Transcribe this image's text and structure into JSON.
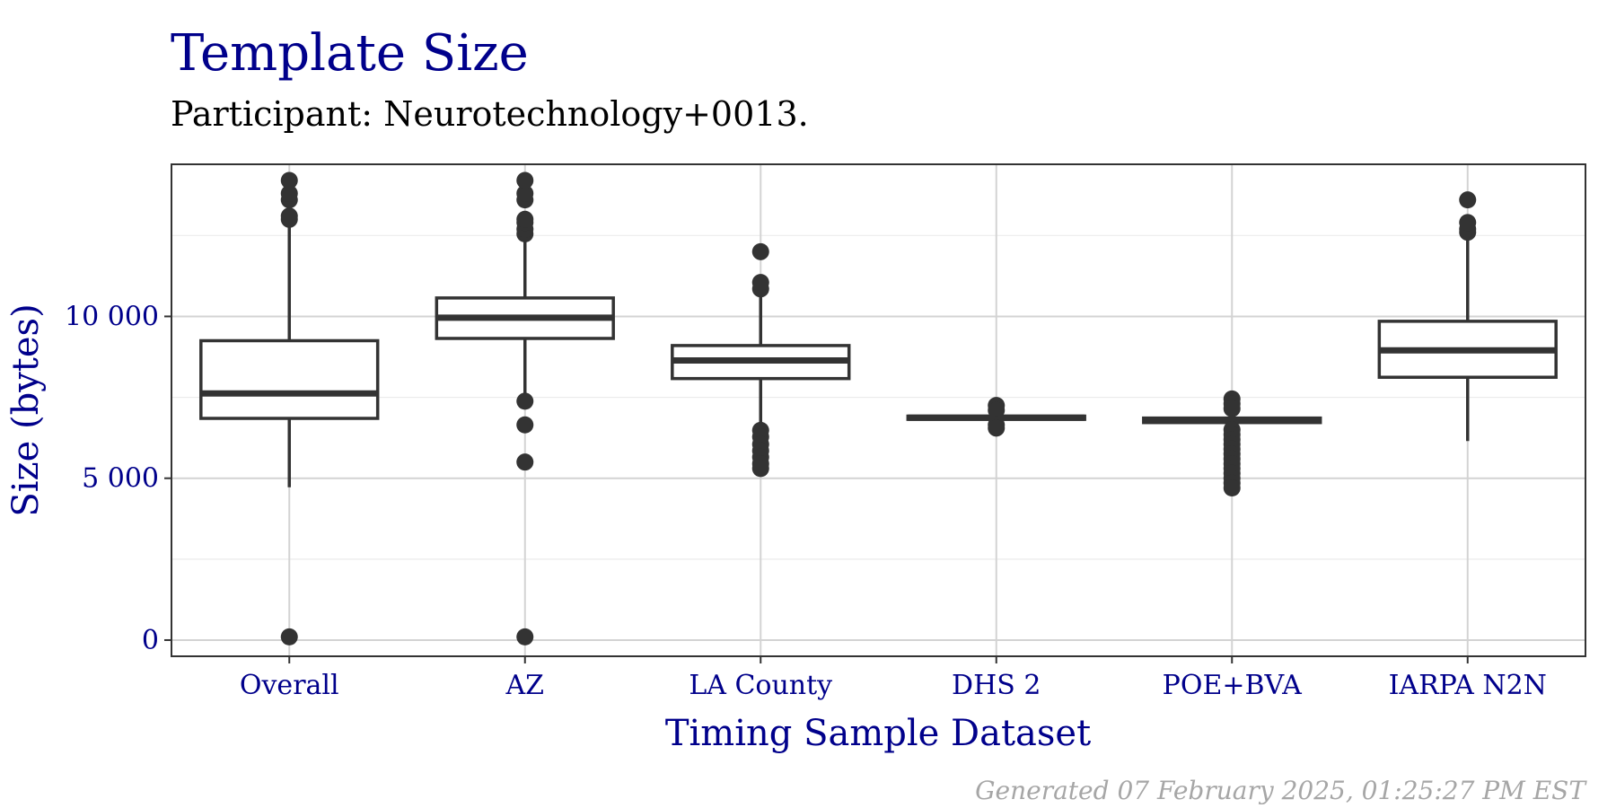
{
  "chart_data": {
    "type": "box",
    "title": "Template Size",
    "subtitle": "Participant: Neurotechnology+0013.",
    "xlabel": "Timing Sample Dataset",
    "ylabel": "Size (bytes)",
    "caption": "Generated 07 February 2025, 01:25:27 PM EST",
    "ylim": [
      -500,
      14700
    ],
    "yticks": [
      0,
      5000,
      10000
    ],
    "ytick_labels": [
      "0",
      "5 000",
      "10 000"
    ],
    "grid": true,
    "categories": [
      "Overall",
      "AZ",
      "LA County",
      "DHS 2",
      "POE+BVA",
      "IARPA N2N"
    ],
    "boxes": [
      {
        "category": "Overall",
        "q1": 6850,
        "median": 7620,
        "q3": 9250,
        "whisker_low": 4720,
        "whisker_high": 12950,
        "outliers": [
          13000,
          13100,
          13600,
          13800,
          14200,
          100
        ]
      },
      {
        "category": "AZ",
        "q1": 9320,
        "median": 9960,
        "q3": 10570,
        "whisker_low": 7450,
        "whisker_high": 12450,
        "outliers": [
          12550,
          12700,
          12900,
          13000,
          13600,
          13800,
          14200,
          7380,
          6650,
          5500,
          100
        ]
      },
      {
        "category": "LA County",
        "q1": 8080,
        "median": 8640,
        "q3": 9100,
        "whisker_low": 6550,
        "whisker_high": 10700,
        "outliers": [
          10850,
          11050,
          12000,
          6480,
          6280,
          6050,
          5850,
          5650,
          5450,
          5300
        ]
      },
      {
        "category": "DHS 2",
        "q1": 6820,
        "median": 6870,
        "q3": 6920,
        "whisker_low": 6780,
        "whisker_high": 6960,
        "outliers": [
          7250,
          7100,
          6650,
          6550
        ]
      },
      {
        "category": "POE+BVA",
        "q1": 6720,
        "median": 6790,
        "q3": 6860,
        "whisker_low": 6600,
        "whisker_high": 7050,
        "outliers": [
          7450,
          7300,
          7150,
          6500,
          6350,
          6200,
          6050,
          5900,
          5750,
          5600,
          5450,
          5300,
          5150,
          5000,
          4850,
          4700
        ]
      },
      {
        "category": "IARPA N2N",
        "q1": 8120,
        "median": 8950,
        "q3": 9850,
        "whisker_low": 6150,
        "whisker_high": 12500,
        "outliers": [
          12600,
          12700,
          12900,
          13600
        ]
      }
    ]
  }
}
